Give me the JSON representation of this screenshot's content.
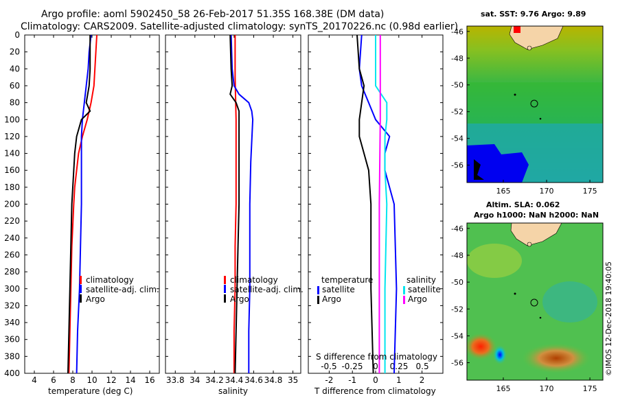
{
  "header": {
    "title_line1": "Argo profile: aoml 5902450_58 26-Feb-2017 51.35S 168.38E (DM data)",
    "title_line2": "Climatology: CARS2009. Satellite-adjusted climatology: synTS_20170226.nc (0.98d earlier)"
  },
  "colors": {
    "climatology": "#ff0000",
    "satellite": "#0000ff",
    "argo": "#000000",
    "sal_satellite": "#00e5ee",
    "sal_argo": "#ff00ff"
  },
  "chart_data": [
    {
      "type": "line",
      "id": "temperature",
      "xlabel": "temperature (deg C)",
      "xlim": [
        3,
        17
      ],
      "ylim": [
        0,
        400
      ],
      "xticks": [
        "4",
        "6",
        "8",
        "10",
        "12",
        "14",
        "16"
      ],
      "xtick_values": [
        4,
        6,
        8,
        10,
        12,
        14,
        16
      ],
      "yticks": [
        "0",
        "20",
        "40",
        "60",
        "80",
        "100",
        "120",
        "140",
        "160",
        "180",
        "200",
        "220",
        "240",
        "260",
        "280",
        "300",
        "320",
        "340",
        "360",
        "380",
        "400"
      ],
      "legend": [
        "climatology",
        "satellite-adj. clim.",
        "Argo"
      ],
      "series": [
        {
          "name": "climatology",
          "color": "#ff0000",
          "depth": [
            0,
            20,
            40,
            60,
            80,
            100,
            120,
            140,
            160,
            180,
            200,
            250,
            300,
            350,
            400
          ],
          "values": [
            10.5,
            10.4,
            10.3,
            10.2,
            9.9,
            9.5,
            9.0,
            8.6,
            8.4,
            8.2,
            8.1,
            7.9,
            7.8,
            7.7,
            7.6
          ]
        },
        {
          "name": "satellite-adj. clim.",
          "color": "#0000ff",
          "depth": [
            0,
            20,
            40,
            60,
            80,
            100,
            120,
            140,
            160,
            180,
            200,
            250,
            300,
            350,
            400
          ],
          "values": [
            9.9,
            9.7,
            9.6,
            9.4,
            9.2,
            9.0,
            8.9,
            8.9,
            8.9,
            8.9,
            8.9,
            8.8,
            8.7,
            8.5,
            8.4
          ]
        },
        {
          "name": "Argo",
          "color": "#000000",
          "depth": [
            0,
            20,
            40,
            60,
            80,
            90,
            100,
            120,
            140,
            160,
            180,
            200,
            250,
            300,
            350,
            400
          ],
          "values": [
            9.8,
            9.8,
            9.8,
            9.7,
            9.4,
            9.8,
            8.9,
            8.4,
            8.2,
            8.1,
            8.0,
            7.9,
            7.8,
            7.7,
            7.6,
            7.5
          ]
        }
      ]
    },
    {
      "type": "line",
      "id": "salinity",
      "xlabel": "salinity",
      "xlim": [
        33.7,
        35.08
      ],
      "ylim": [
        0,
        400
      ],
      "xticks": [
        "33.8",
        "34",
        "34.2",
        "34.4",
        "34.6",
        "34.8",
        "35"
      ],
      "xtick_values": [
        33.8,
        34.0,
        34.2,
        34.4,
        34.6,
        34.8,
        35.0
      ],
      "legend": [
        "climatology",
        "satellite-adj. clim.",
        "Argo"
      ],
      "series": [
        {
          "name": "climatology",
          "color": "#ff0000",
          "depth": [
            0,
            50,
            100,
            150,
            200,
            250,
            300,
            350,
            400
          ],
          "values": [
            34.41,
            34.41,
            34.42,
            34.42,
            34.42,
            34.41,
            34.41,
            34.4,
            34.4
          ]
        },
        {
          "name": "satellite-adj. clim.",
          "color": "#0000ff",
          "depth": [
            0,
            40,
            60,
            70,
            80,
            90,
            100,
            150,
            200,
            250,
            300,
            350,
            400
          ],
          "values": [
            34.37,
            34.38,
            34.4,
            34.45,
            34.55,
            34.58,
            34.59,
            34.57,
            34.56,
            34.56,
            34.56,
            34.55,
            34.55
          ]
        },
        {
          "name": "Argo",
          "color": "#000000",
          "depth": [
            0,
            40,
            60,
            70,
            80,
            90,
            100,
            150,
            200,
            250,
            300,
            350,
            400
          ],
          "values": [
            34.36,
            34.37,
            34.38,
            34.36,
            34.42,
            34.45,
            34.45,
            34.45,
            34.45,
            34.44,
            34.43,
            34.42,
            34.41
          ]
        }
      ]
    },
    {
      "type": "line",
      "id": "differences",
      "xlabel": "T difference from climatology",
      "xlabel_top": "S difference from climatology",
      "xlim": [
        -2.9,
        2.9
      ],
      "ylim": [
        0,
        400
      ],
      "xticks": [
        "-2",
        "-1",
        "0",
        "1",
        "2"
      ],
      "xtick_values": [
        -2,
        -1,
        0,
        1,
        2
      ],
      "xticks_top": [
        "-0.5",
        "-0.25",
        "0",
        "0.25",
        "0.5"
      ],
      "xtick_top_values": [
        -0.5,
        -0.25,
        0,
        0.25,
        0.5
      ],
      "legend_headers": [
        "temperature",
        "salinity"
      ],
      "legend": [
        "satellite",
        "Argo",
        "satellite",
        "Argo"
      ],
      "series": [
        {
          "name": "temperature satellite",
          "color": "#0000ff",
          "depth": [
            0,
            40,
            60,
            80,
            100,
            120,
            140,
            160,
            200,
            300,
            400
          ],
          "values": [
            -0.6,
            -0.7,
            -0.6,
            -0.3,
            0.0,
            0.6,
            0.4,
            0.4,
            0.8,
            0.9,
            0.8
          ]
        },
        {
          "name": "temperature Argo",
          "color": "#000000",
          "depth": [
            0,
            40,
            60,
            80,
            100,
            120,
            140,
            160,
            200,
            300,
            400
          ],
          "values": [
            -0.8,
            -0.7,
            -0.5,
            -0.6,
            -0.7,
            -0.7,
            -0.5,
            -0.3,
            -0.2,
            -0.2,
            -0.1
          ]
        },
        {
          "name": "salinity satellite",
          "color": "#00e5ee",
          "depth": [
            0,
            60,
            80,
            100,
            120,
            160,
            200,
            300,
            400
          ],
          "values": [
            0.0,
            0.0,
            0.12,
            0.12,
            0.1,
            0.1,
            0.12,
            0.1,
            0.1
          ]
        },
        {
          "name": "salinity Argo",
          "color": "#ff00ff",
          "depth": [
            0,
            100,
            200,
            300,
            400
          ],
          "values": [
            0.05,
            0.05,
            0.04,
            0.04,
            0.04
          ]
        }
      ]
    }
  ],
  "maps": {
    "sst": {
      "title": "sat. SST: 9.76 Argo: 9.89",
      "yticks": [
        "-46",
        "-48",
        "-50",
        "-52",
        "-54",
        "-56"
      ],
      "xticks": [
        "165",
        "170",
        "175"
      ]
    },
    "sla": {
      "title_line1": "Altim. SLA: 0.062",
      "title_line2": "Argo h1000: NaN h2000: NaN",
      "yticks": [
        "-46",
        "-48",
        "-50",
        "-52",
        "-54",
        "-56"
      ],
      "xticks": [
        "165",
        "170",
        "175"
      ]
    }
  },
  "footer": {
    "credit": "©IMOS 12-Dec-2018 19:40:05"
  }
}
